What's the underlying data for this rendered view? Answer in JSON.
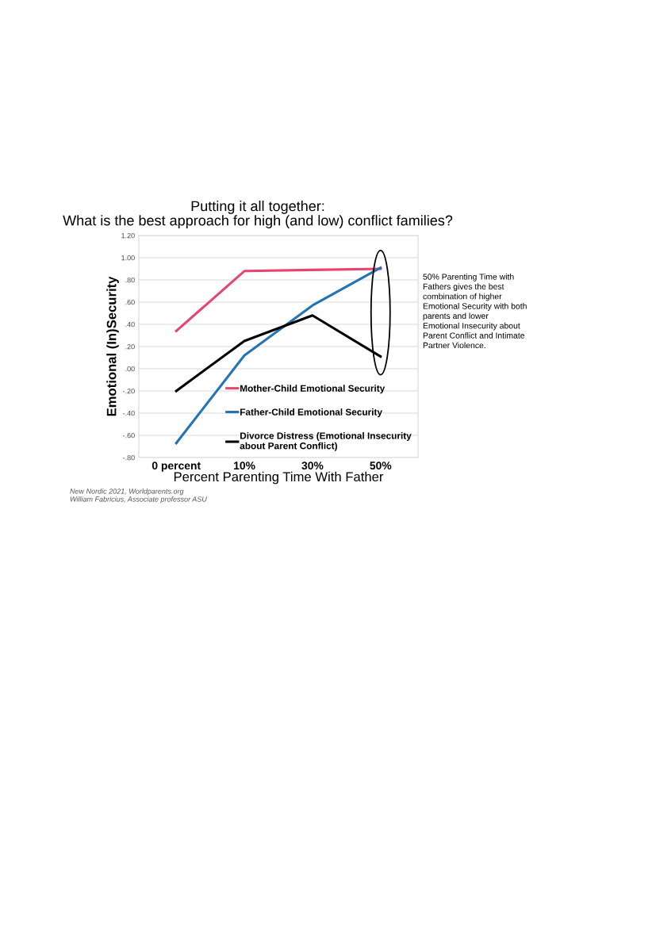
{
  "chart_data": {
    "type": "line",
    "title": "Putting it all together:\nWhat is the best approach for high (and low) conflict families?",
    "xlabel": "Percent Parenting Time With Father",
    "ylabel": "Emotional (In)Security",
    "categories": [
      "0 percent",
      "10%",
      "30%",
      "50%"
    ],
    "series": [
      {
        "name": "Mother-Child Emotional Security",
        "color": "#e8446e",
        "values": [
          0.34,
          0.88,
          0.89,
          0.9
        ]
      },
      {
        "name": "Father-Child Emotional Security",
        "color": "#2473b5",
        "values": [
          -0.67,
          0.12,
          0.57,
          0.91
        ]
      },
      {
        "name": "Divorce Distress (Emotional Insecurity\nabout Parent Conflict)",
        "color": "#000000",
        "values": [
          -0.2,
          0.25,
          0.48,
          0.11
        ]
      }
    ],
    "ylim": [
      -0.8,
      1.2
    ],
    "yticks": [
      {
        "value": -0.8,
        "label": "-.80"
      },
      {
        "value": -0.6,
        "label": "-.60"
      },
      {
        "value": -0.4,
        "label": "-.40"
      },
      {
        "value": -0.2,
        "label": "-.20"
      },
      {
        "value": 0,
        "label": ".00"
      },
      {
        "value": 0.2,
        "label": ".20"
      },
      {
        "value": 0.4,
        "label": ".40"
      },
      {
        "value": 0.6,
        "label": ".60"
      },
      {
        "value": 0.8,
        "label": ".80"
      },
      {
        "value": 1.0,
        "label": "1.00"
      },
      {
        "value": 1.2,
        "label": "1.20"
      }
    ],
    "grid": "y",
    "legend": "bottom right",
    "marker": "none",
    "line_style": "solid",
    "annotations": [
      "50% Parenting Time with Fathers gives the best combination of higher Emotional Security with both parents and lower Emotional Insecurity about Parent Conflict and Intimate Partner Violence.",
      "New Nordic 2021, Worldparents.org",
      "William Fabricius, Associate professor ASU"
    ]
  }
}
